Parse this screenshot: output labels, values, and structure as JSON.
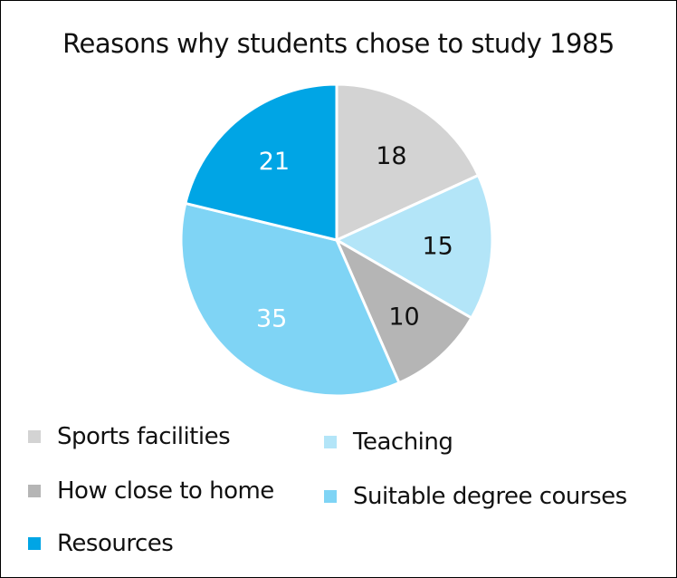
{
  "chart_data": {
    "type": "pie",
    "title": "Reasons why students chose to study 1985",
    "categories": [
      "Sports facilities",
      "Teaching",
      "How close to home",
      "Suitable degree courses",
      "Resources"
    ],
    "values": [
      18,
      15,
      10,
      35,
      21
    ],
    "colors": [
      "#d3d3d3",
      "#b3e5f8",
      "#b5b5b5",
      "#7fd4f5",
      "#00a5e5"
    ],
    "label_colors": [
      "#111111",
      "#111111",
      "#111111",
      "#ffffff",
      "#ffffff"
    ],
    "legend_position": "bottom"
  }
}
